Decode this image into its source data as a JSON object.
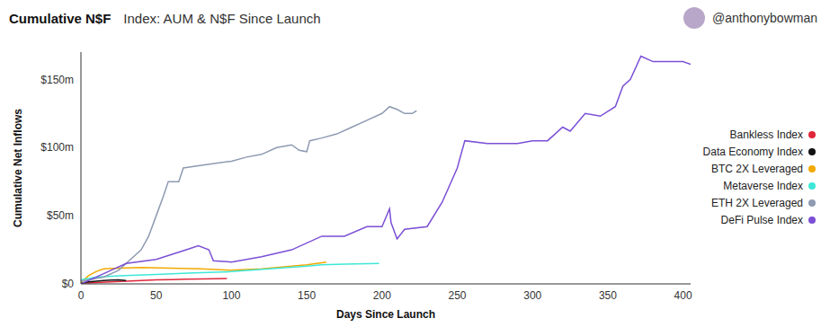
{
  "chart_data": {
    "type": "line",
    "title": "Cumulative N$F",
    "subtitle": "Index: AUM & N$F Since Launch",
    "annotation": "@anthonybowman",
    "x_label": "Days Since Launch",
    "y_label": "Cumulative Net Inflows",
    "xlim": [
      0,
      405
    ],
    "xticks": [
      0,
      50,
      100,
      150,
      200,
      250,
      300,
      350,
      400
    ],
    "ylim": [
      0,
      170
    ],
    "yticks": [
      {
        "value": 0,
        "label": "$0"
      },
      {
        "value": 50,
        "label": "$50m"
      },
      {
        "value": 100,
        "label": "$100m"
      },
      {
        "value": 150,
        "label": "$150m"
      }
    ],
    "grid": false,
    "legend": "right",
    "series": [
      {
        "name": "Bankless Index",
        "color": "#e0263a",
        "x": [
          0,
          10,
          20,
          30,
          40,
          50,
          60,
          70,
          80,
          90,
          97
        ],
        "values": [
          0.5,
          1,
          1.5,
          2,
          2.5,
          3,
          3.2,
          3.5,
          3.6,
          3.8,
          4
        ]
      },
      {
        "name": "Data Economy Index",
        "color": "#111111",
        "x": [
          0,
          5,
          10,
          15,
          20,
          25,
          30
        ],
        "values": [
          0.5,
          1.5,
          2,
          2.5,
          2.8,
          3,
          2.5
        ]
      },
      {
        "name": "BTC 2X Leveraged",
        "color": "#f2a900",
        "x": [
          0,
          5,
          10,
          15,
          25,
          40,
          60,
          80,
          100,
          110,
          120,
          130,
          140,
          150,
          160,
          163
        ],
        "values": [
          1,
          6,
          9,
          11,
          11.5,
          12,
          11.5,
          11,
          10,
          10.5,
          11,
          12,
          13,
          14,
          15.5,
          16
        ]
      },
      {
        "name": "Metaverse Index",
        "color": "#3ee8d8",
        "x": [
          0,
          10,
          25,
          50,
          75,
          100,
          125,
          150,
          160,
          175,
          198
        ],
        "values": [
          3,
          5,
          6,
          7,
          8,
          9,
          11,
          13,
          14,
          14.5,
          15
        ]
      },
      {
        "name": "ETH 2X Leveraged",
        "color": "#8e9ab2",
        "x": [
          0,
          15,
          25,
          30,
          40,
          45,
          50,
          55,
          58,
          65,
          68,
          80,
          100,
          110,
          120,
          130,
          140,
          145,
          150,
          152,
          160,
          170,
          180,
          190,
          200,
          205,
          210,
          215,
          220,
          223
        ],
        "values": [
          2,
          5,
          10,
          15,
          25,
          35,
          50,
          65,
          75,
          75,
          85,
          87,
          90,
          93,
          95,
          100,
          102,
          98,
          97,
          105,
          107,
          110,
          115,
          120,
          125,
          130,
          128,
          125,
          125,
          127
        ]
      },
      {
        "name": "DeFi Pulse Index",
        "color": "#7b4fd6",
        "x": [
          0,
          20,
          30,
          50,
          70,
          78,
          85,
          88,
          100,
          120,
          140,
          160,
          175,
          190,
          200,
          205,
          206,
          210,
          215,
          230,
          240,
          250,
          255,
          270,
          290,
          300,
          310,
          320,
          325,
          335,
          345,
          355,
          360,
          365,
          372,
          380,
          400,
          405
        ],
        "values": [
          0,
          10,
          15,
          18,
          25,
          28,
          25,
          17,
          16,
          20,
          25,
          35,
          35,
          42,
          42,
          55,
          45,
          33,
          40,
          42,
          60,
          85,
          105,
          103,
          103,
          105,
          105,
          115,
          112,
          125,
          123,
          130,
          145,
          150,
          167,
          163,
          163,
          161
        ]
      }
    ]
  }
}
